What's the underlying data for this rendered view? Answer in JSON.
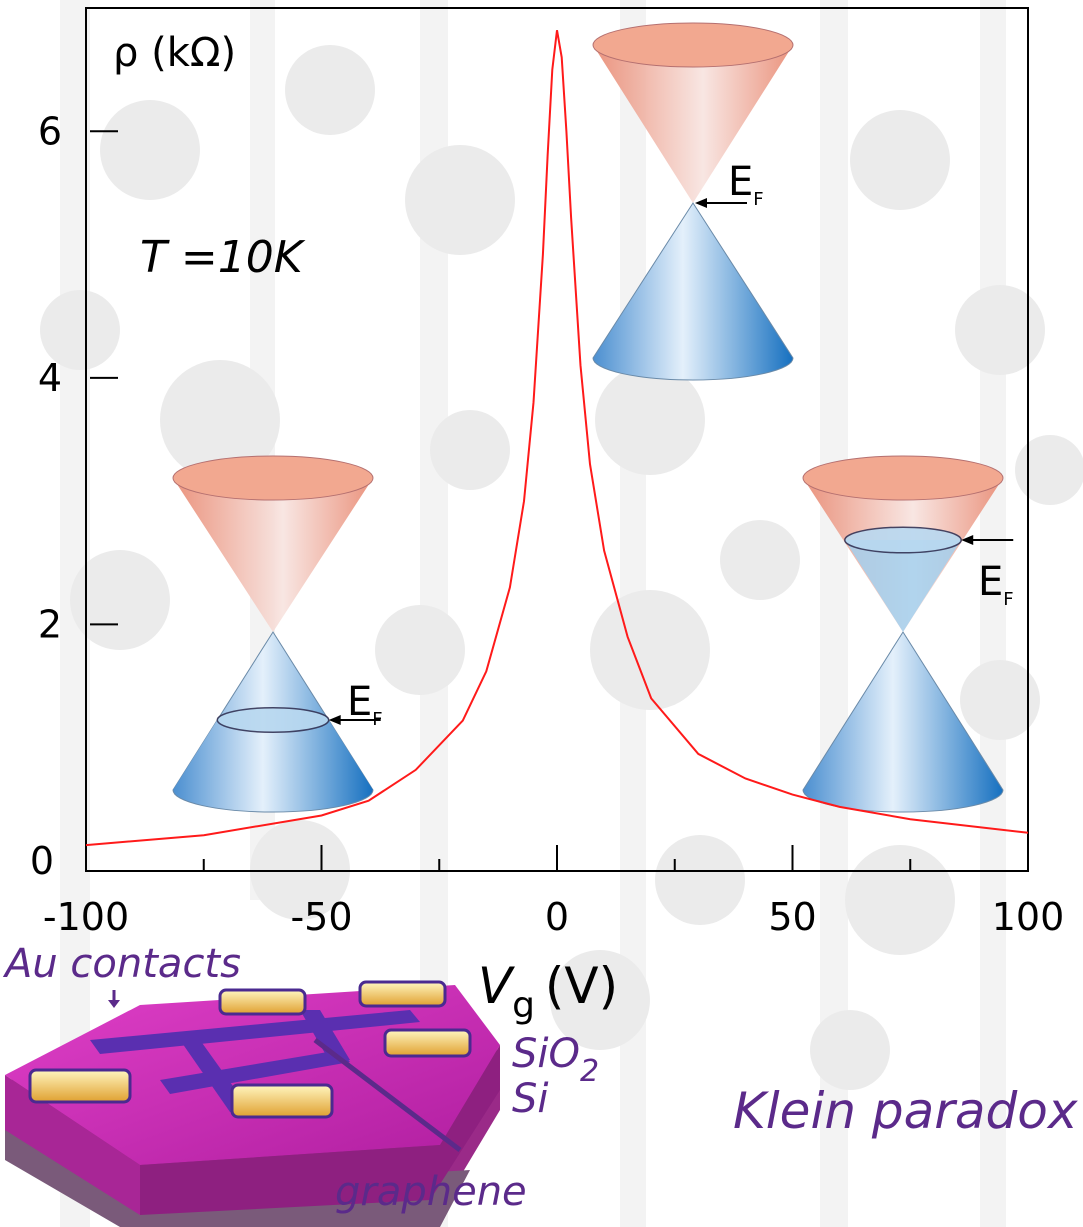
{
  "chart_data": {
    "type": "line",
    "y_label": "ρ (kΩ)",
    "x_label": {
      "symbol": "V",
      "subscript": "g",
      "unit": "(V)"
    },
    "x": [
      -100,
      -75,
      -50,
      -40,
      -30,
      -20,
      -15,
      -10,
      -7,
      -5,
      -3,
      -2,
      -1,
      0,
      1,
      2,
      3,
      5,
      7,
      10,
      15,
      20,
      30,
      40,
      50,
      60,
      75,
      100
    ],
    "values": [
      0.21,
      0.29,
      0.45,
      0.57,
      0.82,
      1.22,
      1.62,
      2.3,
      3.0,
      3.8,
      5.0,
      5.8,
      6.5,
      6.82,
      6.6,
      6.0,
      5.3,
      4.1,
      3.3,
      2.6,
      1.9,
      1.4,
      0.95,
      0.75,
      0.62,
      0.52,
      0.42,
      0.31
    ],
    "color": "#ff1a1a",
    "xlim": [
      -100,
      100
    ],
    "ylim": [
      0,
      7
    ],
    "xticks": [
      -100,
      -50,
      0,
      50,
      100
    ],
    "xminor_ticks": [
      -75,
      -25,
      25,
      75
    ],
    "yticks": [
      0,
      2,
      4,
      6
    ],
    "annotations": {
      "temperature": "T =10K",
      "fermi_level": "E",
      "fermi_level_subscript": "F"
    }
  },
  "device_labels": {
    "contacts": "Au contacts",
    "oxide": "SiO",
    "oxide_subscript": "2",
    "substrate": "Si",
    "channel": "graphene"
  },
  "caption": "Klein paradox"
}
